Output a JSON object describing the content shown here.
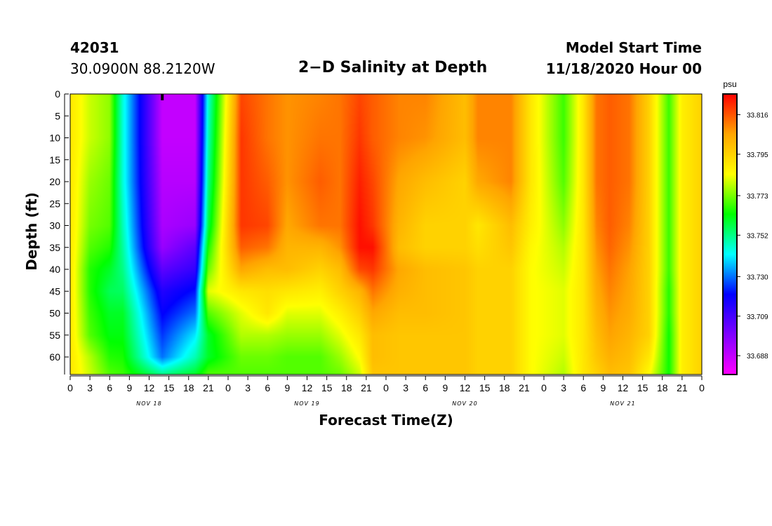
{
  "header": {
    "station_id": "42031",
    "coordinates": "30.0900N 88.2120W",
    "title": "2−D Salinity at Depth",
    "start_label": "Model Start Time",
    "start_value": "11/18/2020 Hour 00"
  },
  "chart_data": {
    "type": "heatmap",
    "title": "2−D Salinity at Depth",
    "xlabel": "Forecast Time(Z)",
    "ylabel": "Depth (ft)",
    "units": "psu",
    "y_ticks": [
      0,
      5,
      10,
      15,
      20,
      25,
      30,
      35,
      40,
      45,
      50,
      55,
      60
    ],
    "ylim": [
      0,
      64
    ],
    "x_range_hours": [
      0,
      96
    ],
    "x_ticks": [
      "0",
      "3",
      "6",
      "9",
      "12",
      "15",
      "18",
      "21",
      "0",
      "3",
      "6",
      "9",
      "12",
      "15",
      "18",
      "21",
      "0",
      "3",
      "6",
      "9",
      "12",
      "15",
      "18",
      "21",
      "0",
      "3",
      "6",
      "9",
      "12",
      "15",
      "18",
      "21",
      "0"
    ],
    "day_labels": [
      "NOV 18",
      "NOV 19",
      "NOV 20",
      "NOV 21"
    ],
    "colorbar_ticks": [
      33.816,
      33.795,
      33.773,
      33.752,
      33.73,
      33.709,
      33.688
    ],
    "colorbar_range": [
      33.678,
      33.827
    ],
    "colorscale": [
      "#ff00ff",
      "#7f00ff",
      "#0000ff",
      "#00ffff",
      "#00ff00",
      "#ffff00",
      "#ffa500",
      "#ff0000"
    ],
    "current_time_marker_hour": 14,
    "grid_x_hours": [
      0,
      3,
      6,
      8,
      14,
      19,
      21,
      26,
      30,
      33,
      38,
      41,
      44,
      46,
      50,
      54,
      60,
      62,
      67,
      70,
      75,
      78,
      80,
      82,
      85,
      88,
      91,
      93,
      96
    ],
    "grid_depths_ft": [
      0,
      10,
      20,
      30,
      35,
      40,
      45,
      50,
      55,
      60,
      64
    ],
    "grid_values_psu": [
      [
        33.79,
        33.79,
        33.79,
        33.79,
        33.79,
        33.79,
        33.79,
        33.79,
        33.79,
        33.79,
        33.79
      ],
      [
        33.78,
        33.78,
        33.776,
        33.773,
        33.77,
        33.766,
        33.766,
        33.768,
        33.77,
        33.778,
        33.78
      ],
      [
        33.775,
        33.775,
        33.772,
        33.77,
        33.766,
        33.76,
        33.756,
        33.76,
        33.762,
        33.766,
        33.77
      ],
      [
        33.745,
        33.745,
        33.745,
        33.748,
        33.75,
        33.752,
        33.755,
        33.76,
        33.762,
        33.765,
        33.768
      ],
      [
        33.688,
        33.688,
        33.69,
        33.692,
        33.695,
        33.705,
        33.715,
        33.72,
        33.725,
        33.73,
        33.752
      ],
      [
        33.688,
        33.688,
        33.69,
        33.695,
        33.705,
        33.712,
        33.722,
        33.73,
        33.74,
        33.748,
        33.76
      ],
      [
        33.745,
        33.748,
        33.752,
        33.758,
        33.765,
        33.772,
        33.782,
        33.77,
        33.76,
        33.76,
        33.77
      ],
      [
        33.818,
        33.82,
        33.82,
        33.82,
        33.815,
        33.805,
        33.79,
        33.782,
        33.778,
        33.772,
        33.77
      ],
      [
        33.812,
        33.812,
        33.815,
        33.818,
        33.812,
        33.8,
        33.792,
        33.79,
        33.778,
        33.772,
        33.77
      ],
      [
        33.808,
        33.808,
        33.808,
        33.805,
        33.802,
        33.8,
        33.79,
        33.782,
        33.776,
        33.77,
        33.77
      ],
      [
        33.81,
        33.812,
        33.815,
        33.812,
        33.802,
        33.795,
        33.788,
        33.782,
        33.776,
        33.77,
        33.77
      ],
      [
        33.812,
        33.812,
        33.812,
        33.812,
        33.808,
        33.8,
        33.795,
        33.788,
        33.782,
        33.776,
        33.772
      ],
      [
        33.818,
        33.82,
        33.823,
        33.825,
        33.825,
        33.818,
        33.802,
        33.796,
        33.79,
        33.785,
        33.78
      ],
      [
        33.815,
        33.815,
        33.818,
        33.82,
        33.825,
        33.82,
        33.812,
        33.805,
        33.8,
        33.8,
        33.798
      ],
      [
        33.81,
        33.81,
        33.805,
        33.802,
        33.8,
        33.805,
        33.803,
        33.8,
        33.798,
        33.798,
        33.798
      ],
      [
        33.81,
        33.808,
        33.8,
        33.795,
        33.795,
        33.8,
        33.8,
        33.8,
        33.798,
        33.798,
        33.798
      ],
      [
        33.8,
        33.8,
        33.795,
        33.795,
        33.795,
        33.798,
        33.798,
        33.798,
        33.798,
        33.798,
        33.798
      ],
      [
        33.81,
        33.81,
        33.805,
        33.79,
        33.792,
        33.795,
        33.795,
        33.795,
        33.795,
        33.795,
        33.795
      ],
      [
        33.81,
        33.81,
        33.81,
        33.8,
        33.798,
        33.795,
        33.795,
        33.795,
        33.795,
        33.795,
        33.795
      ],
      [
        33.79,
        33.79,
        33.79,
        33.788,
        33.786,
        33.785,
        33.785,
        33.785,
        33.785,
        33.785,
        33.785
      ],
      [
        33.768,
        33.768,
        33.77,
        33.775,
        33.778,
        33.78,
        33.782,
        33.782,
        33.782,
        33.78,
        33.778
      ],
      [
        33.79,
        33.79,
        33.79,
        33.79,
        33.79,
        33.79,
        33.79,
        33.79,
        33.79,
        33.79,
        33.79
      ],
      [
        33.812,
        33.812,
        33.812,
        33.81,
        33.808,
        33.806,
        33.804,
        33.802,
        33.8,
        33.798,
        33.795
      ],
      [
        33.815,
        33.815,
        33.815,
        33.815,
        33.814,
        33.812,
        33.81,
        33.808,
        33.806,
        33.803,
        33.8
      ],
      [
        33.812,
        33.812,
        33.812,
        33.81,
        33.808,
        33.806,
        33.805,
        33.804,
        33.802,
        33.8,
        33.798
      ],
      [
        33.795,
        33.795,
        33.795,
        33.795,
        33.795,
        33.795,
        33.795,
        33.795,
        33.795,
        33.79,
        33.785
      ],
      [
        33.768,
        33.768,
        33.768,
        33.768,
        33.768,
        33.768,
        33.766,
        33.766,
        33.764,
        33.764,
        33.764
      ],
      [
        33.788,
        33.788,
        33.788,
        33.788,
        33.788,
        33.788,
        33.788,
        33.788,
        33.788,
        33.788,
        33.788
      ],
      [
        33.795,
        33.795,
        33.795,
        33.795,
        33.795,
        33.795,
        33.795,
        33.795,
        33.795,
        33.795,
        33.795
      ]
    ]
  }
}
